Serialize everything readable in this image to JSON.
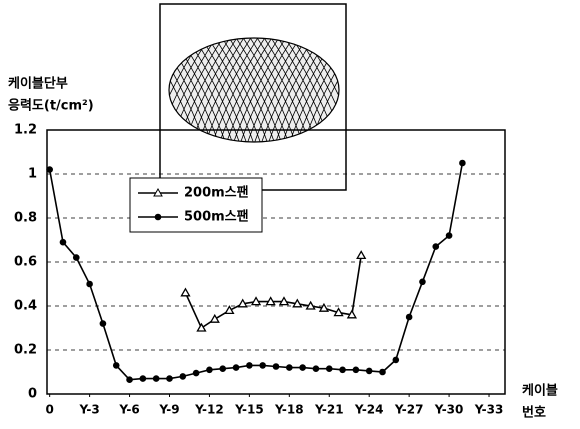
{
  "chart_data": {
    "type": "line",
    "y_label": [
      "케이블단부",
      "응력도(t/cm²)"
    ],
    "x_label": [
      "케이블",
      "번호"
    ],
    "xlim": [
      -0.2,
      34.2
    ],
    "xticks": [
      {
        "value": 0,
        "label": "0"
      },
      {
        "value": 3,
        "label": "Y-3"
      },
      {
        "value": 6,
        "label": "Y-6"
      },
      {
        "value": 9,
        "label": "Y-9"
      },
      {
        "value": 12,
        "label": "Y-12"
      },
      {
        "value": 15,
        "label": "Y-15"
      },
      {
        "value": 18,
        "label": "Y-18"
      },
      {
        "value": 21,
        "label": "Y-21"
      },
      {
        "value": 24,
        "label": "Y-24"
      },
      {
        "value": 27,
        "label": "Y-27"
      },
      {
        "value": 30,
        "label": "Y-30"
      },
      {
        "value": 33,
        "label": "Y-33"
      }
    ],
    "ylim": [
      0,
      1.2
    ],
    "yticks": [
      0,
      0.2,
      0.4,
      0.6,
      0.8,
      1,
      1.2
    ],
    "grid": true,
    "legend": "upper left",
    "series": [
      {
        "name": "200m스팬",
        "color": "#000000",
        "marker": "triangle",
        "x": [
          10.2,
          11.4,
          12.4,
          13.5,
          14.5,
          15.5,
          16.6,
          17.6,
          18.6,
          19.6,
          20.6,
          21.7,
          22.7,
          23.4
        ],
        "values": [
          0.46,
          0.3,
          0.34,
          0.38,
          0.41,
          0.42,
          0.42,
          0.42,
          0.41,
          0.4,
          0.39,
          0.37,
          0.36,
          0.63
        ]
      },
      {
        "name": "500m스팬",
        "color": "#000000",
        "marker": "circle",
        "x": [
          0,
          1,
          2,
          3,
          4,
          5,
          6,
          7,
          8,
          9,
          10,
          11,
          12,
          13,
          14,
          15,
          16,
          17,
          18,
          19,
          20,
          21,
          22,
          23,
          24,
          25,
          26,
          27,
          28,
          29,
          30,
          31
        ],
        "values": [
          1.02,
          0.69,
          0.62,
          0.5,
          0.32,
          0.13,
          0.065,
          0.07,
          0.07,
          0.07,
          0.08,
          0.095,
          0.11,
          0.115,
          0.12,
          0.13,
          0.13,
          0.125,
          0.12,
          0.12,
          0.115,
          0.115,
          0.11,
          0.11,
          0.105,
          0.1,
          0.155,
          0.35,
          0.51,
          0.67,
          0.72,
          1.05
        ]
      }
    ]
  }
}
